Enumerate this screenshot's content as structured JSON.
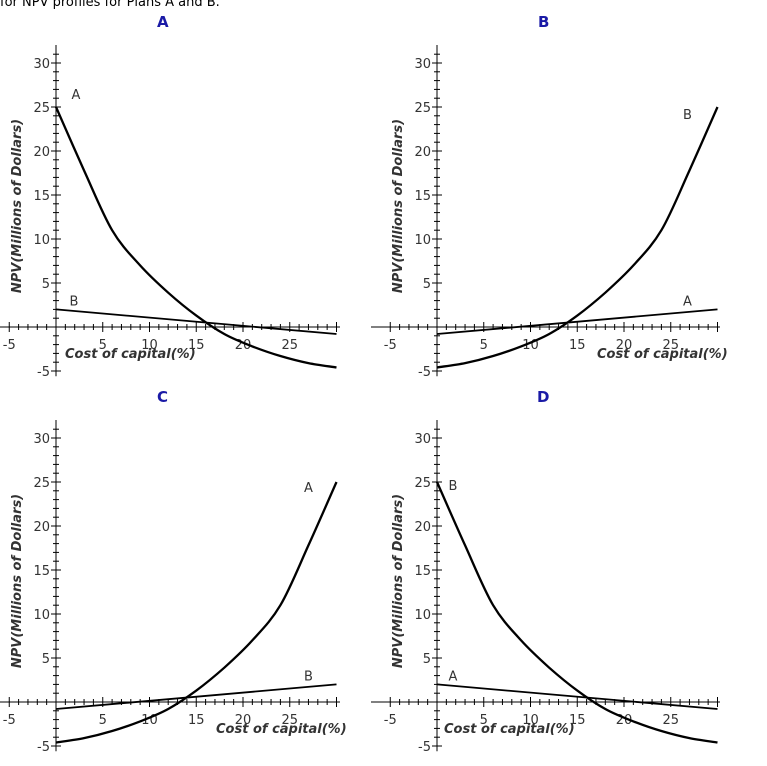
{
  "header": {
    "text": "for NPV profiles for Plans A and B."
  },
  "colors": {
    "option_label": "#1a1aa6",
    "curve": "#000000",
    "axis": "#000000"
  },
  "chart_data": [
    {
      "option": "A",
      "type": "line",
      "xlabel": "Cost of capital(%)",
      "ylabel": "NPV(Millions of Dollars)",
      "xlim": [
        -5,
        30
      ],
      "ylim": [
        -5,
        31
      ],
      "xticks": [
        -5,
        5,
        10,
        15,
        20,
        25
      ],
      "yticks": [
        -5,
        5,
        10,
        15,
        20,
        25,
        30
      ],
      "series": [
        {
          "name": "A",
          "x": [
            0,
            3,
            6,
            9,
            12,
            15,
            18,
            21,
            24,
            27,
            30
          ],
          "values": [
            25,
            17.8,
            11,
            7,
            3.9,
            1.3,
            -0.8,
            -2.2,
            -3.3,
            -4.1,
            -4.6
          ]
        },
        {
          "name": "B",
          "x": [
            0,
            30
          ],
          "values": [
            2,
            -0.8
          ]
        }
      ]
    },
    {
      "option": "B",
      "type": "line",
      "xlabel": "Cost of capital(%)",
      "ylabel": "NPV(Millions of Dollars)",
      "xlim": [
        -5,
        30
      ],
      "ylim": [
        -5,
        31
      ],
      "xticks": [
        -5,
        5,
        10,
        15,
        20,
        25
      ],
      "yticks": [
        -5,
        5,
        10,
        15,
        20,
        25,
        30
      ],
      "series": [
        {
          "name": "B",
          "x": [
            0,
            3,
            6,
            9,
            12,
            15,
            18,
            21,
            24,
            27,
            30
          ],
          "values": [
            -4.6,
            -4.1,
            -3.3,
            -2.2,
            -0.8,
            1.3,
            3.9,
            7,
            11,
            17.8,
            25
          ]
        },
        {
          "name": "A",
          "x": [
            0,
            30
          ],
          "values": [
            -0.8,
            2
          ]
        }
      ]
    },
    {
      "option": "C",
      "type": "line",
      "xlabel": "Cost of capital(%)",
      "ylabel": "NPV(Millions of Dollars)",
      "xlim": [
        -5,
        30
      ],
      "ylim": [
        -5,
        31
      ],
      "xticks": [
        -5,
        5,
        10,
        15,
        20,
        25
      ],
      "yticks": [
        -5,
        5,
        10,
        15,
        20,
        25,
        30
      ],
      "series": [
        {
          "name": "A",
          "x": [
            0,
            3,
            6,
            9,
            12,
            15,
            18,
            21,
            24,
            27,
            30
          ],
          "values": [
            -4.6,
            -4.1,
            -3.3,
            -2.2,
            -0.8,
            1.3,
            3.9,
            7,
            11,
            17.8,
            25
          ]
        },
        {
          "name": "B",
          "x": [
            0,
            30
          ],
          "values": [
            -0.8,
            2
          ]
        }
      ]
    },
    {
      "option": "D",
      "type": "line",
      "xlabel": "Cost of capital(%)",
      "ylabel": "NPV(Millions of Dollars)",
      "xlim": [
        -5,
        30
      ],
      "ylim": [
        -5,
        31
      ],
      "xticks": [
        -5,
        5,
        10,
        15,
        20,
        25
      ],
      "yticks": [
        -5,
        5,
        10,
        15,
        20,
        25,
        30
      ],
      "series": [
        {
          "name": "B",
          "x": [
            0,
            3,
            6,
            9,
            12,
            15,
            18,
            21,
            24,
            27,
            30
          ],
          "values": [
            25,
            17.8,
            11,
            7,
            3.9,
            1.3,
            -0.8,
            -2.2,
            -3.3,
            -4.1,
            -4.6
          ]
        },
        {
          "name": "A",
          "x": [
            0,
            30
          ],
          "values": [
            2,
            -0.8
          ]
        }
      ]
    }
  ]
}
